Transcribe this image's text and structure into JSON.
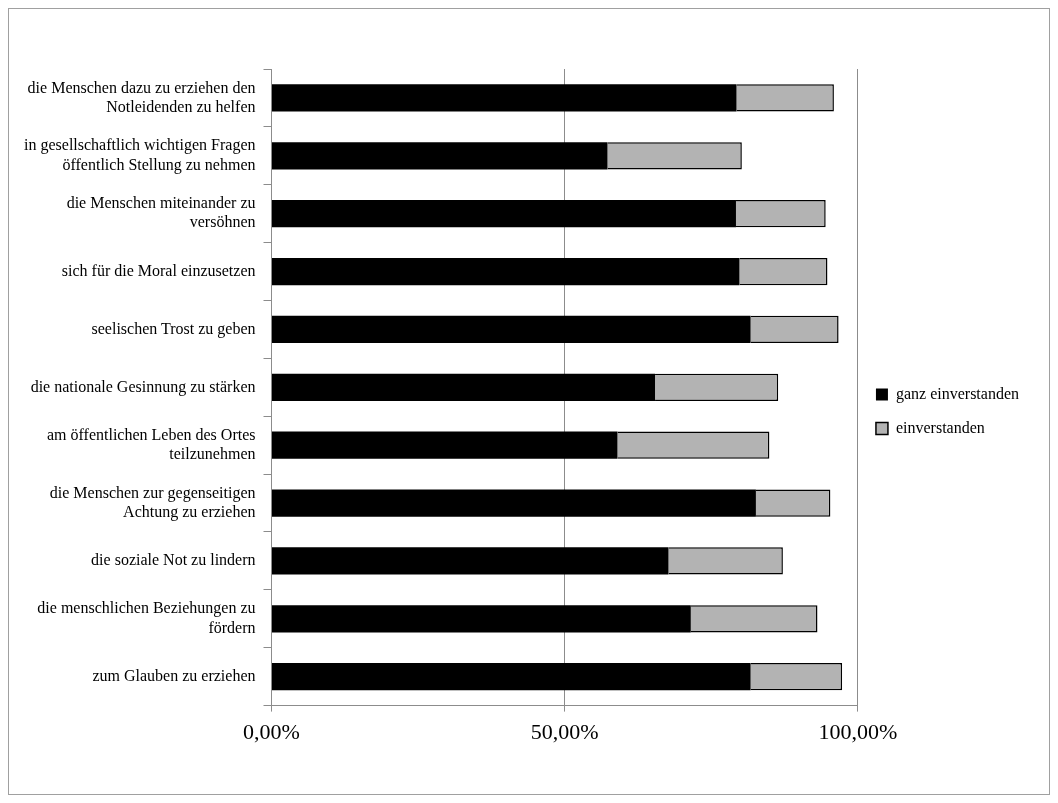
{
  "chart_data": {
    "type": "bar",
    "orientation": "horizontal",
    "stacked": true,
    "categories": [
      "die Menschen dazu zu erziehen den Notleidenden zu helfen",
      "in gesellschaftlich wichtigen Fragen öffentlich Stellung zu nehmen",
      "die Menschen miteinander zu versöhnen",
      "sich für die Moral einzusetzen",
      "seelischen Trost zu geben",
      "die nationale Gesinnung zu stärken",
      "am öffentlichen Leben des Ortes teilzunehmen",
      "die Menschen zur gegenseitigen Achtung zu erziehen",
      "die soziale Not zu lindern",
      "die menschlichen Beziehungen zu fördern",
      "zum Glauben zu erziehen"
    ],
    "series": [
      {
        "name": "ganz einverstanden",
        "color": "#000000",
        "values": [
          79.3,
          57.3,
          79.2,
          79.8,
          81.7,
          65.4,
          59.0,
          82.6,
          67.7,
          71.5,
          81.7
        ]
      },
      {
        "name": "einverstanden",
        "color": "#b3b3b3",
        "values": [
          16.6,
          22.9,
          15.3,
          15.0,
          15.0,
          21.0,
          25.9,
          12.7,
          19.5,
          21.6,
          15.6
        ]
      }
    ],
    "xlim": [
      0,
      100
    ],
    "xticks": [
      {
        "value": 0,
        "label": "0,00%"
      },
      {
        "value": 50,
        "label": "50,00%"
      },
      {
        "value": 100,
        "label": "100,00%"
      }
    ],
    "grid": "x",
    "legend": "right"
  }
}
